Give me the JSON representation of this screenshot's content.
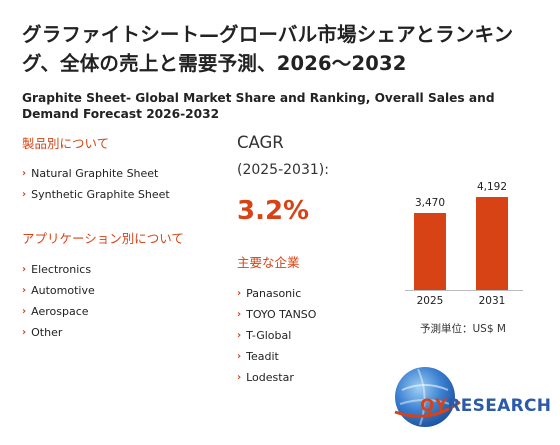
{
  "title_jp": "グラファイトシート—グローバル市場シェアとランキング、全体の売上と需要予測、2026～2032",
  "title_en": "Graphite Sheet- Global Market Share and Ranking, Overall Sales and Demand Forecast 2026-2032",
  "products": {
    "heading": "製品別について",
    "items": [
      "Natural Graphite Sheet",
      "Synthetic Graphite Sheet"
    ]
  },
  "applications": {
    "heading": "アプリケーション別について",
    "items": [
      "Electronics",
      "Automotive",
      "Aerospace",
      "Other"
    ]
  },
  "cagr": {
    "label": "CAGR",
    "period": "(2025-2031):",
    "value": "3.2%"
  },
  "companies": {
    "heading": "主要な企業",
    "items": [
      "Panasonic",
      "TOYO TANSO",
      "T-Global",
      "Teadit",
      "Lodestar"
    ]
  },
  "chart_data": {
    "type": "bar",
    "categories": [
      "2025",
      "2031"
    ],
    "values": [
      3470,
      4192
    ],
    "value_labels": [
      "3,470",
      "4,192"
    ],
    "unit_label": "予測単位：US$ M",
    "bar_color": "#d84315",
    "ylim": [
      0,
      4192
    ]
  },
  "logo": {
    "q": "QY",
    "r": "RESEARCH"
  },
  "colors": {
    "accent": "#d84315",
    "logo_blue": "#2b5aa8"
  }
}
